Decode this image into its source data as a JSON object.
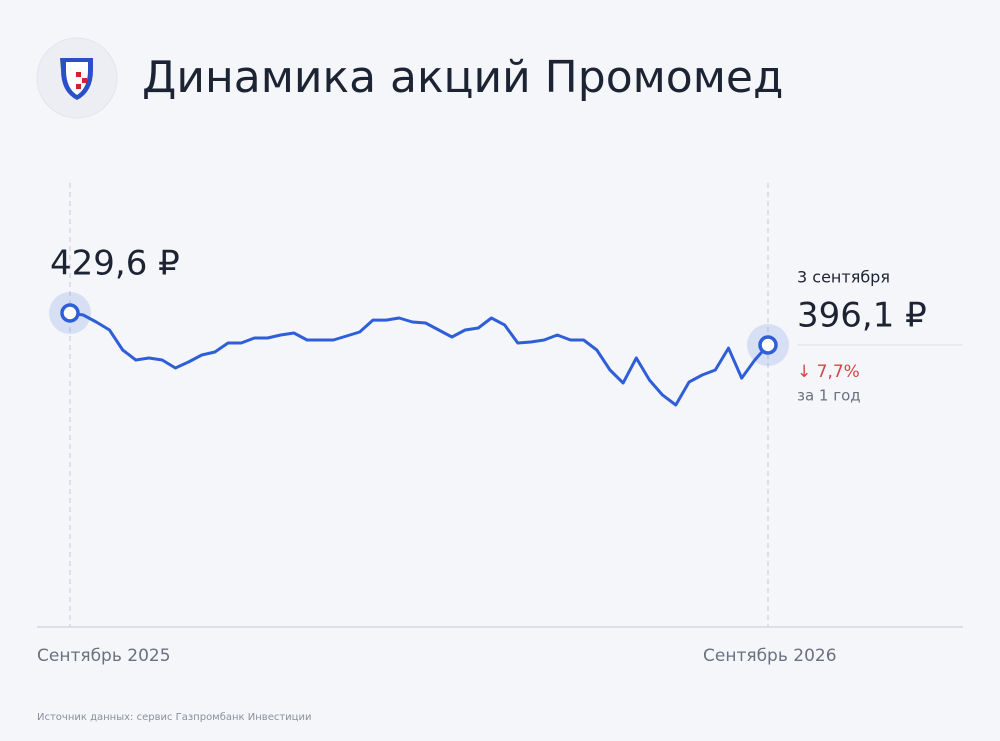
{
  "chart_data": {
    "type": "line",
    "title": "Динамика акций Промомед",
    "x_labels": [
      "Сентябрь 2025",
      "Сентябрь 2026"
    ],
    "color": "#2f5fd8",
    "values": [
      429.6,
      427.5,
      420.2,
      411.8,
      390.9,
      380.4,
      382.5,
      380.4,
      372.0,
      378.3,
      385.6,
      388.8,
      398.2,
      398.2,
      403.4,
      403.4,
      406.6,
      408.7,
      401.3,
      401.3,
      401.3,
      405.5,
      409.7,
      422.2,
      422.2,
      424.4,
      420.2,
      419.1,
      411.8,
      404.5,
      411.8,
      413.9,
      424.4,
      417.1,
      398.2,
      399.2,
      401.3,
      406.6,
      401.3,
      401.3,
      390.9,
      369.9,
      356.3,
      382.5,
      359.4,
      343.7,
      333.3,
      357.3,
      364.7,
      369.9,
      392.9,
      361.5,
      380.4,
      396.1
    ],
    "value_labels": [
      "429,6 ₽",
      null,
      null,
      null,
      null,
      null,
      null,
      null,
      null,
      null,
      null,
      null,
      null,
      null,
      null,
      null,
      null,
      null,
      null,
      null,
      null,
      null,
      null,
      null,
      null,
      null,
      null,
      null,
      null,
      null,
      null,
      null,
      null,
      null,
      null,
      null,
      null,
      null,
      null,
      null,
      null,
      null,
      null,
      null,
      null,
      null,
      null,
      null,
      null,
      null,
      null,
      null,
      null,
      "396,1 ₽"
    ],
    "end_date": "3 сентября",
    "change_label": "↓ 7,7%",
    "change_period": "за 1 год",
    "source": "Источник данных: сервис Газпромбанк Инвестиции"
  }
}
